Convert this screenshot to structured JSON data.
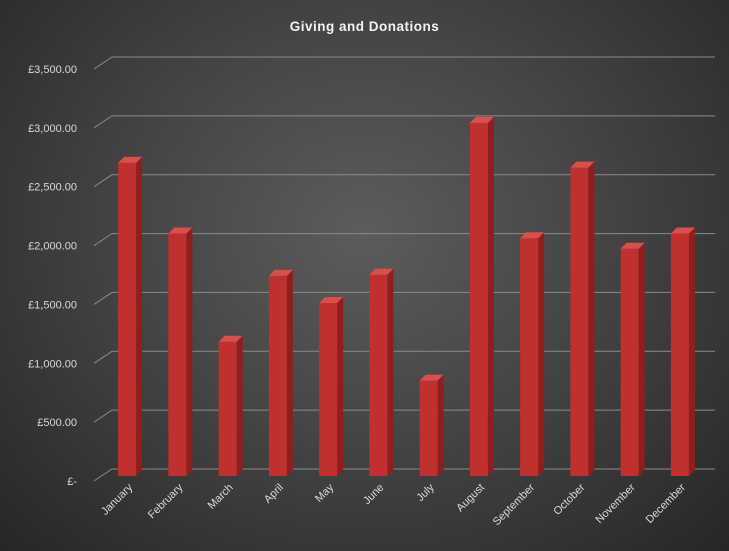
{
  "chart_data": {
    "type": "bar",
    "title": "Giving and Donations",
    "xlabel": "",
    "ylabel": "",
    "categories": [
      "January",
      "February",
      "March",
      "April",
      "May",
      "June",
      "July",
      "August",
      "September",
      "October",
      "November",
      "December"
    ],
    "values": [
      2660,
      2060,
      1140,
      1700,
      1470,
      1710,
      810,
      3000,
      2020,
      2620,
      1930,
      2060
    ],
    "ylim": [
      0,
      3500
    ],
    "y_ticks": [
      0,
      500,
      1000,
      1500,
      2000,
      2500,
      3000,
      3500
    ],
    "y_tick_labels": [
      "£-",
      "£500.00",
      "£1,000.00",
      "£1,500.00",
      "£2,000.00",
      "£2,500.00",
      "£3,000.00",
      "£3,500.00"
    ],
    "grid": true,
    "style": "3d-column",
    "colors": {
      "bar": "#c0302e",
      "bar_side": "#8f1f1d",
      "bar_top": "#d8504c",
      "grid": "#8a8a8a",
      "text": "#d9d9d9"
    }
  }
}
